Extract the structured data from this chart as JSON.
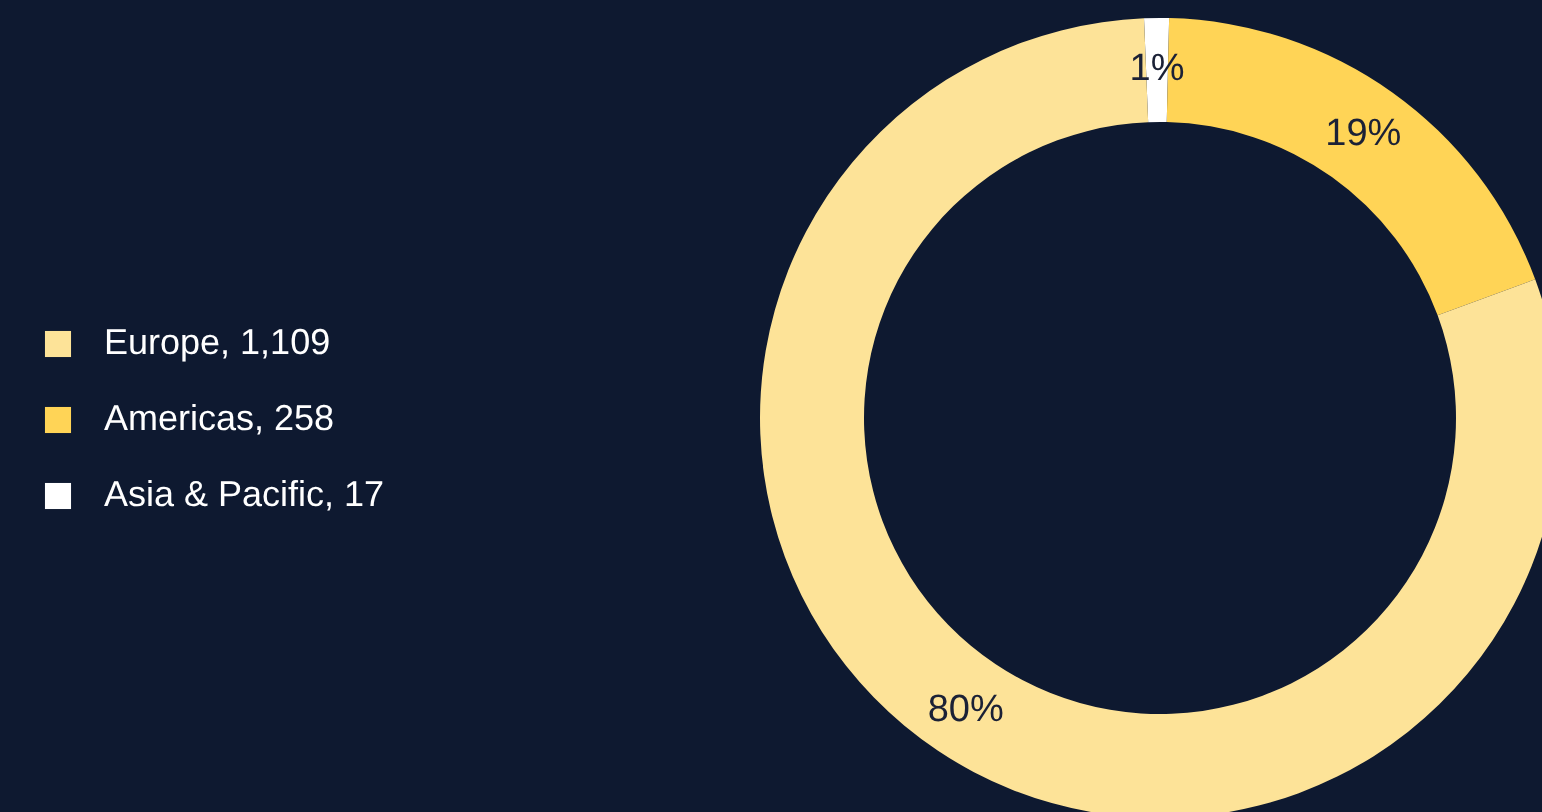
{
  "chart_data": {
    "type": "donut",
    "categories": [
      "Asia & Pacific, 17",
      "Americas, 258",
      "Europe, 1,109"
    ],
    "values": [
      1,
      19,
      80
    ],
    "colors": [
      "#ffffff",
      "#ffd456",
      "#fde398"
    ],
    "value_labels": [
      "1%",
      "19%",
      "80%"
    ],
    "legend": "left"
  }
}
